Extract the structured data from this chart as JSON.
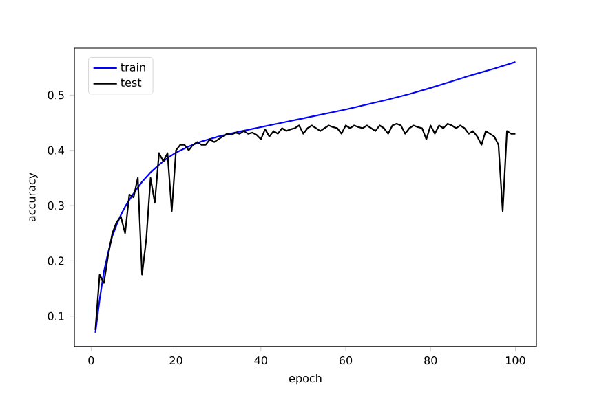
{
  "chart_data": {
    "type": "line",
    "xlabel": "epoch",
    "ylabel": "accuracy",
    "xlim": [
      -3.95,
      104.95
    ],
    "ylim": [
      0.045,
      0.585
    ],
    "xticks": [
      0,
      20,
      40,
      60,
      80,
      100
    ],
    "yticks": [
      0.1,
      0.2,
      0.3,
      0.4,
      0.5
    ],
    "legend": "top left",
    "grid": false,
    "series": [
      {
        "name": "train",
        "color": "#0000ff",
        "x": [
          1,
          2,
          3,
          4,
          5,
          6,
          7,
          8,
          10,
          12,
          14,
          16,
          18,
          20,
          23,
          26,
          30,
          35,
          40,
          45,
          50,
          55,
          60,
          65,
          70,
          75,
          80,
          85,
          90,
          95,
          100
        ],
        "values": [
          0.07,
          0.13,
          0.18,
          0.215,
          0.245,
          0.265,
          0.283,
          0.298,
          0.322,
          0.343,
          0.36,
          0.374,
          0.386,
          0.396,
          0.407,
          0.416,
          0.425,
          0.434,
          0.442,
          0.45,
          0.458,
          0.466,
          0.474,
          0.483,
          0.492,
          0.502,
          0.513,
          0.525,
          0.537,
          0.548,
          0.56
        ]
      },
      {
        "name": "test",
        "color": "#000000",
        "x": [
          1,
          2,
          3,
          4,
          5,
          6,
          7,
          8,
          9,
          10,
          11,
          12,
          13,
          14,
          15,
          16,
          17,
          18,
          19,
          20,
          21,
          22,
          23,
          24,
          25,
          26,
          27,
          28,
          29,
          30,
          31,
          32,
          33,
          34,
          35,
          36,
          37,
          38,
          39,
          40,
          41,
          42,
          43,
          44,
          45,
          46,
          47,
          48,
          49,
          50,
          51,
          52,
          53,
          54,
          55,
          56,
          57,
          58,
          59,
          60,
          61,
          62,
          63,
          64,
          65,
          66,
          67,
          68,
          69,
          70,
          71,
          72,
          73,
          74,
          75,
          76,
          77,
          78,
          79,
          80,
          81,
          82,
          83,
          84,
          85,
          86,
          87,
          88,
          89,
          90,
          91,
          92,
          93,
          94,
          95,
          96,
          97,
          98,
          99,
          100
        ],
        "values": [
          0.075,
          0.175,
          0.16,
          0.21,
          0.25,
          0.27,
          0.28,
          0.25,
          0.32,
          0.315,
          0.35,
          0.175,
          0.24,
          0.35,
          0.305,
          0.395,
          0.38,
          0.395,
          0.29,
          0.4,
          0.41,
          0.41,
          0.4,
          0.41,
          0.415,
          0.41,
          0.41,
          0.42,
          0.415,
          0.42,
          0.425,
          0.43,
          0.428,
          0.432,
          0.43,
          0.435,
          0.43,
          0.432,
          0.428,
          0.42,
          0.438,
          0.425,
          0.435,
          0.43,
          0.44,
          0.435,
          0.438,
          0.44,
          0.445,
          0.43,
          0.44,
          0.445,
          0.44,
          0.435,
          0.44,
          0.445,
          0.442,
          0.44,
          0.43,
          0.445,
          0.44,
          0.445,
          0.442,
          0.44,
          0.445,
          0.44,
          0.435,
          0.445,
          0.44,
          0.43,
          0.445,
          0.448,
          0.445,
          0.43,
          0.44,
          0.445,
          0.442,
          0.44,
          0.42,
          0.445,
          0.43,
          0.445,
          0.44,
          0.448,
          0.445,
          0.44,
          0.445,
          0.44,
          0.43,
          0.435,
          0.425,
          0.41,
          0.435,
          0.43,
          0.425,
          0.41,
          0.29,
          0.435,
          0.43,
          0.43
        ]
      }
    ]
  }
}
